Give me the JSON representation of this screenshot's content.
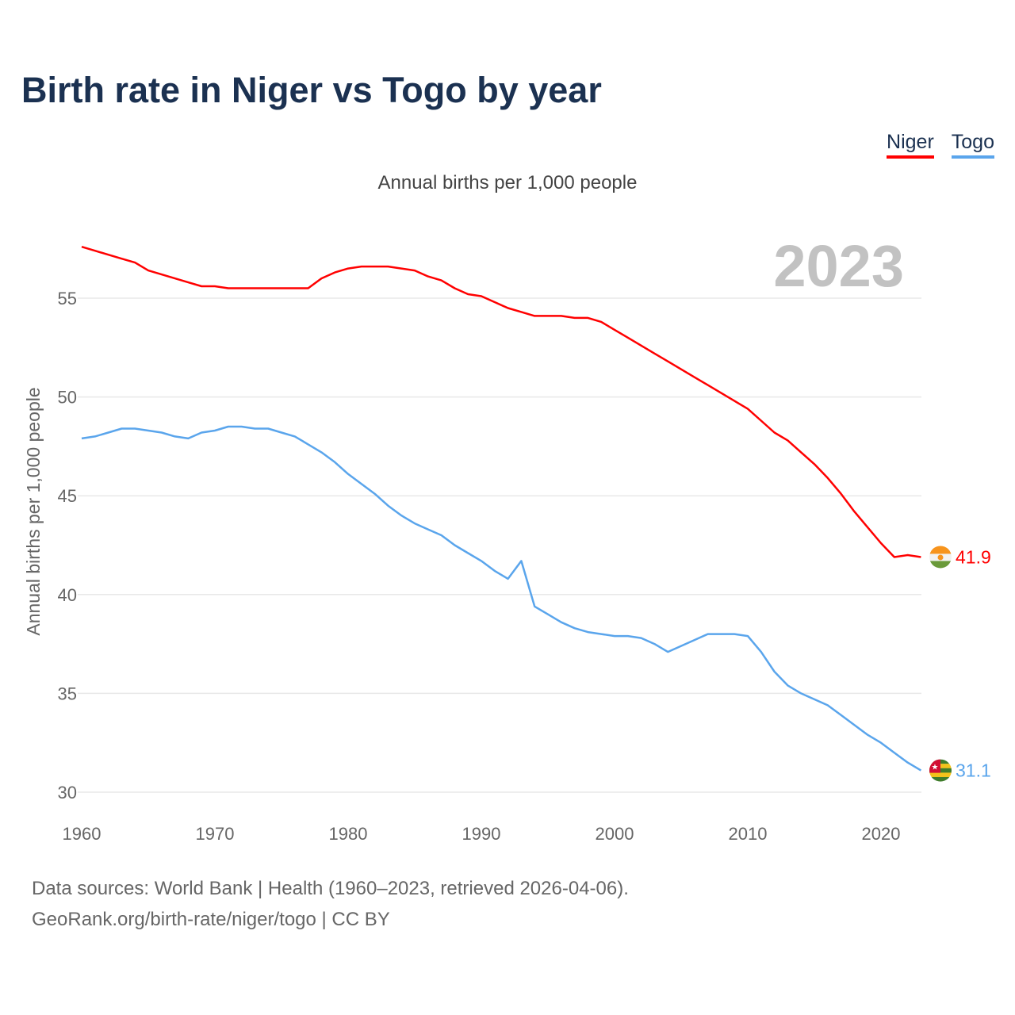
{
  "title": "Birth rate in Niger vs Togo by year",
  "subtitle": "Annual births per 1,000 people",
  "year_label": "2023",
  "footer": {
    "line1": "Data sources: World Bank | Health (1960–2023, retrieved 2026-04-06).",
    "line2": "GeoRank.org/birth-rate/niger/togo | CC BY"
  },
  "chart_data": {
    "type": "line",
    "title": "Birth rate in Niger vs Togo by year",
    "xlabel": "",
    "ylabel": "Annual births per 1,000 people",
    "xlim": [
      1960,
      2023
    ],
    "ylim": [
      30,
      57.6
    ],
    "x_ticks": [
      1960,
      1970,
      1980,
      1990,
      2000,
      2010,
      2020
    ],
    "y_ticks": [
      30,
      35,
      40,
      45,
      50,
      55
    ],
    "grid": true,
    "legend": "top-right",
    "series": [
      {
        "name": "Niger",
        "color": "#ff0000",
        "end_label": "41.9",
        "flag": "niger-flag",
        "values": [
          57.6,
          57.4,
          57.2,
          57.0,
          56.8,
          56.4,
          56.2,
          56.0,
          55.8,
          55.6,
          55.6,
          55.5,
          55.5,
          55.5,
          55.5,
          55.5,
          55.5,
          55.5,
          56.0,
          56.3,
          56.5,
          56.6,
          56.6,
          56.6,
          56.5,
          56.4,
          56.1,
          55.9,
          55.5,
          55.2,
          55.1,
          54.8,
          54.5,
          54.3,
          54.1,
          54.1,
          54.1,
          54.0,
          54.0,
          53.8,
          53.4,
          53.0,
          52.6,
          52.2,
          51.8,
          51.4,
          51.0,
          50.6,
          50.2,
          49.8,
          49.4,
          48.8,
          48.2,
          47.8,
          47.2,
          46.6,
          45.9,
          45.1,
          44.2,
          43.4,
          42.6,
          41.9,
          42.0,
          41.9
        ]
      },
      {
        "name": "Togo",
        "color": "#5aa5ec",
        "end_label": "31.1",
        "flag": "togo-flag",
        "values": [
          47.9,
          48.0,
          48.2,
          48.4,
          48.4,
          48.3,
          48.2,
          48.0,
          47.9,
          48.2,
          48.3,
          48.5,
          48.5,
          48.4,
          48.4,
          48.2,
          48.0,
          47.6,
          47.2,
          46.7,
          46.1,
          45.6,
          45.1,
          44.5,
          44.0,
          43.6,
          43.3,
          43.0,
          42.5,
          42.1,
          41.7,
          41.2,
          40.8,
          41.7,
          39.4,
          39.0,
          38.6,
          38.3,
          38.1,
          38.0,
          37.9,
          37.9,
          37.8,
          37.5,
          37.1,
          37.4,
          37.7,
          38.0,
          38.0,
          38.0,
          37.9,
          37.1,
          36.1,
          35.4,
          35.0,
          34.7,
          34.4,
          33.9,
          33.4,
          32.9,
          32.5,
          32.0,
          31.5,
          31.1
        ]
      }
    ]
  }
}
